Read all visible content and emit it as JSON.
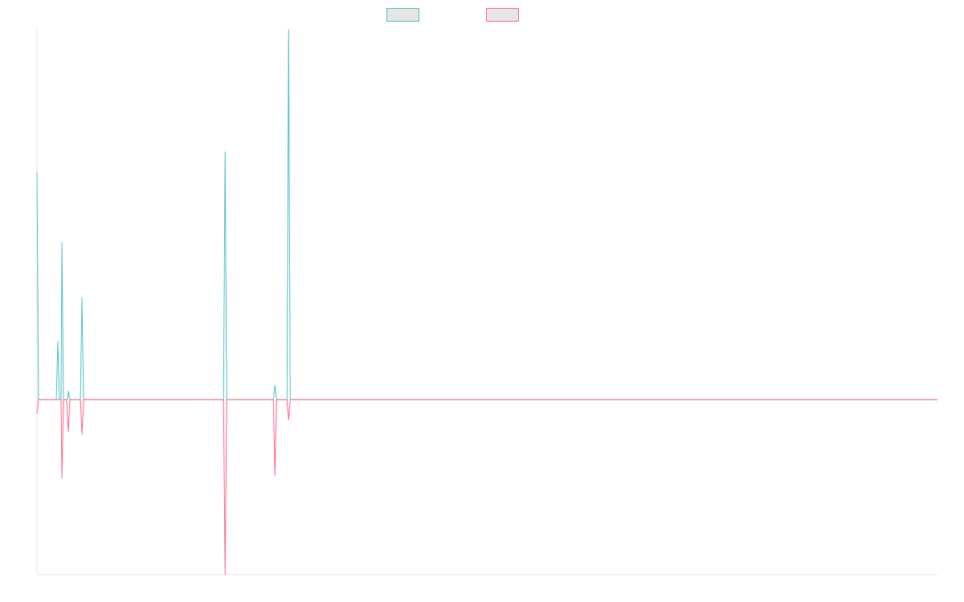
{
  "chart_data": {
    "type": "line",
    "title": "",
    "xlabel": "",
    "ylabel": "",
    "grid": false,
    "legend": "top-center",
    "ylim": [
      -0.6,
      1.27
    ],
    "x": [
      0,
      1,
      2,
      3,
      4,
      5,
      6,
      7,
      8,
      9,
      10,
      11,
      12,
      13,
      14,
      15,
      16,
      17,
      18,
      19,
      20,
      21,
      22,
      23,
      24,
      25,
      26,
      27,
      28,
      29,
      30,
      31,
      32,
      33,
      34,
      35,
      36,
      37,
      38,
      39,
      40,
      41,
      42,
      43,
      44,
      45,
      46,
      47,
      48,
      49,
      50,
      51,
      52,
      53,
      54,
      55,
      56,
      57,
      58,
      59,
      60,
      61,
      62,
      63,
      64,
      65,
      66,
      67,
      68,
      69,
      70,
      71,
      72,
      73,
      74,
      75,
      76,
      77,
      78,
      79,
      80,
      81,
      82,
      83,
      84,
      85,
      86,
      87,
      88,
      89,
      90,
      91,
      92,
      93,
      94,
      95,
      96,
      97,
      98,
      99,
      100,
      101,
      102,
      103,
      104,
      105,
      106,
      107,
      108,
      109,
      110,
      111,
      112,
      113,
      114,
      115,
      116,
      117,
      118,
      119,
      120,
      121,
      122,
      123,
      124,
      125,
      126,
      127,
      128,
      129,
      130,
      131,
      132,
      133,
      134,
      135,
      136,
      137,
      138,
      139,
      140,
      141,
      142,
      143,
      144,
      145,
      146,
      147,
      148,
      149,
      150,
      151,
      152,
      153,
      154,
      155,
      156,
      157,
      158,
      159,
      160,
      161,
      162,
      163,
      164,
      165,
      166,
      167,
      168,
      169,
      170,
      171,
      172,
      173,
      174,
      175,
      176,
      177,
      178,
      179,
      180,
      181,
      182,
      183,
      184,
      185,
      186,
      187,
      188,
      189,
      190,
      191,
      192,
      193,
      194,
      195,
      196,
      197,
      198,
      199,
      200,
      201,
      202,
      203,
      204,
      205,
      206,
      207,
      208,
      209,
      210,
      211,
      212,
      213,
      214,
      215,
      216,
      217,
      218,
      219,
      220,
      221,
      222,
      223,
      224,
      225,
      226,
      227,
      228,
      229,
      230,
      231,
      232,
      233,
      234,
      235,
      236,
      237,
      238,
      239,
      240,
      241,
      242,
      243,
      244,
      245,
      246,
      247,
      248,
      249,
      250,
      251,
      252,
      253,
      254,
      255,
      256,
      257,
      258,
      259,
      260,
      261,
      262,
      263,
      264,
      265,
      266,
      267,
      268,
      269,
      270,
      271,
      272,
      273,
      274,
      275,
      276,
      277,
      278,
      279,
      280,
      281,
      282,
      283,
      284,
      285,
      286,
      287,
      288,
      289,
      290,
      291,
      292,
      293,
      294,
      295,
      296,
      297,
      298,
      299,
      300,
      301,
      302,
      303,
      304,
      305,
      306,
      307,
      308,
      309,
      310,
      311,
      312,
      313,
      314,
      315,
      316,
      317,
      318,
      319,
      320,
      321,
      322,
      323,
      324,
      325,
      326,
      327,
      328,
      329,
      330,
      331,
      332,
      333,
      334,
      335,
      336,
      337,
      338,
      339,
      340,
      341,
      342,
      343,
      344,
      345,
      346,
      347,
      348,
      349,
      350,
      351,
      352,
      353,
      354,
      355,
      356,
      357,
      358,
      359,
      360,
      361,
      362,
      363,
      364,
      365,
      366,
      367,
      368,
      369,
      370,
      371,
      372,
      373,
      374,
      375,
      376,
      377,
      378,
      379,
      380,
      381,
      382,
      383,
      384,
      385,
      386,
      387,
      388,
      389,
      390,
      391,
      392,
      393,
      394,
      395,
      396,
      397,
      398,
      399,
      400,
      401,
      402,
      403,
      404,
      405,
      406,
      407,
      408,
      409,
      410,
      411,
      412,
      413,
      414,
      415,
      416,
      417,
      418,
      419,
      420,
      421,
      422,
      423,
      424,
      425,
      426,
      427,
      428,
      429,
      430,
      431,
      432,
      433,
      434,
      435,
      436,
      437,
      438,
      439,
      440,
      441,
      442,
      443,
      444,
      445,
      446,
      447,
      448,
      449,
      450,
      451,
      452,
      453,
      454,
      455,
      456,
      457,
      458,
      459,
      460,
      461,
      462,
      463,
      464,
      465,
      466,
      467,
      468,
      469,
      470,
      471,
      472,
      473,
      474,
      475,
      476,
      477,
      478,
      479,
      480,
      481,
      482,
      483,
      484,
      485,
      486,
      487,
      488,
      489,
      490,
      491,
      492,
      493,
      494,
      495,
      496,
      497,
      498,
      499,
      500,
      501,
      502,
      503,
      504,
      505,
      506,
      507,
      508,
      509,
      510,
      511,
      512,
      513,
      514,
      515,
      516,
      517,
      518,
      519,
      520,
      521,
      522,
      523,
      524,
      525,
      526,
      527,
      528,
      529,
      530,
      531,
      532,
      533,
      534,
      535,
      536,
      537,
      538,
      539,
      540,
      541,
      542,
      543,
      544,
      545,
      546,
      547,
      548,
      549,
      550,
      551,
      552,
      553,
      554,
      555,
      556,
      557,
      558,
      559,
      560,
      561,
      562,
      563,
      564,
      565,
      566,
      567,
      568,
      569,
      570,
      571,
      572,
      573,
      574,
      575,
      576,
      577,
      578,
      579,
      580,
      581,
      582,
      583,
      584,
      585,
      586,
      587,
      588,
      589,
      590,
      591,
      592,
      593,
      594,
      595,
      596,
      597,
      598,
      599,
      600,
      601,
      602,
      603,
      604,
      605,
      606,
      607,
      608,
      609,
      610,
      611,
      612,
      613,
      614,
      615,
      616,
      617,
      618,
      619,
      620,
      621,
      622,
      623,
      624,
      625,
      626,
      627,
      628,
      629,
      630,
      631,
      632,
      633,
      634,
      635,
      636,
      637,
      638,
      639,
      640,
      641,
      642,
      643,
      644,
      645,
      646,
      647,
      648,
      649,
      650,
      651,
      652,
      653,
      654,
      655,
      656,
      657,
      658,
      659,
      660,
      661,
      662,
      663,
      664,
      665,
      666,
      667,
      668,
      669,
      670,
      671,
      672,
      673,
      674,
      675,
      676,
      677,
      678,
      679,
      680,
      681,
      682,
      683,
      684,
      685,
      686,
      687,
      688,
      689,
      690,
      691,
      692,
      693,
      694,
      695,
      696,
      697,
      698,
      699,
      700,
      701,
      702,
      703,
      704,
      705,
      706,
      707,
      708,
      709,
      710,
      711,
      712,
      713,
      714,
      715,
      716,
      717,
      718,
      719,
      720,
      721,
      722,
      723,
      724,
      725,
      726,
      727,
      728,
      729,
      730,
      731,
      732,
      733,
      734,
      735,
      736,
      737,
      738,
      739,
      740,
      741,
      742,
      743,
      744,
      745,
      746,
      747,
      748,
      749,
      750,
      751,
      752,
      753,
      754,
      755,
      756,
      757,
      758,
      759,
      760,
      761,
      762,
      763,
      764,
      765,
      766,
      767,
      768,
      769,
      770,
      771,
      772,
      773,
      774,
      775,
      776,
      777,
      778,
      779,
      780,
      781,
      782,
      783,
      784,
      785,
      786,
      787,
      788,
      789,
      790,
      791,
      792,
      793,
      794,
      795,
      796,
      797,
      798,
      799,
      800,
      801,
      802,
      803,
      804,
      805,
      806,
      807,
      808,
      809,
      810,
      811,
      812,
      813,
      814,
      815,
      816,
      817,
      818,
      819,
      820,
      821,
      822,
      823,
      824,
      825,
      826,
      827,
      828,
      829,
      830,
      831,
      832,
      833,
      834,
      835,
      836,
      837,
      838,
      839,
      840,
      841,
      842,
      843,
      844,
      845,
      846,
      847,
      848,
      849,
      850,
      851,
      852,
      853,
      854,
      855,
      856,
      857,
      858,
      859,
      860,
      861,
      862,
      863,
      864,
      865,
      866,
      867,
      868,
      869,
      870,
      871,
      872,
      873,
      874,
      875,
      876,
      877,
      878,
      879,
      880,
      881,
      882,
      883,
      884,
      885,
      886,
      887,
      888,
      889,
      890,
      891,
      892,
      893,
      894,
      895,
      896,
      897,
      898,
      899,
      900,
      901,
      902,
      903,
      904,
      905,
      906,
      907,
      908,
      909,
      910,
      911,
      912,
      913,
      914,
      915,
      916,
      917,
      918,
      919,
      920,
      921,
      922,
      923,
      924,
      925,
      926,
      927,
      928,
      929,
      930,
      931,
      932,
      933,
      934,
      935,
      936,
      937,
      938,
      939,
      940,
      941,
      942,
      943,
      944,
      945,
      946,
      947,
      948,
      949,
      950,
      951,
      952,
      953,
      954,
      955,
      956,
      957,
      958,
      959,
      960,
      961,
      962,
      963,
      964,
      965,
      966,
      967,
      968,
      969,
      970,
      971,
      972,
      973,
      974,
      975,
      976,
      977,
      978,
      979,
      980,
      981,
      982,
      983,
      984,
      985,
      986,
      987,
      988,
      989,
      990,
      991,
      992,
      993,
      994,
      995,
      996,
      997,
      998,
      999,
      1000,
      1001,
      1002,
      1003,
      1004,
      1005,
      1006,
      1007,
      1008,
      1009,
      1010,
      1011,
      1012,
      1013,
      1014,
      1015,
      1016,
      1017,
      1018,
      1019,
      1020,
      1021,
      1022,
      1023,
      1024,
      1025,
      1026,
      1027,
      1028,
      1029,
      1030,
      1031,
      1032,
      1033,
      1034,
      1035,
      1036,
      1037,
      1038,
      1039,
      1040,
      1041,
      1042,
      1043,
      1044,
      1045,
      1046,
      1047,
      1048,
      1049,
      1050,
      1051,
      1052,
      1053,
      1054,
      1055,
      1056,
      1057,
      1058,
      1059,
      1060,
      1061,
      1062,
      1063,
      1064,
      1065,
      1066,
      1067,
      1068,
      1069,
      1070,
      1071,
      1072,
      1073,
      1074,
      1075,
      1076,
      1077,
      1078,
      1079,
      1080,
      1081,
      1082,
      1083,
      1084,
      1085,
      1086,
      1087,
      1088,
      1089,
      1090,
      1091,
      1092,
      1093,
      1094,
      1095,
      1096,
      1097,
      1098,
      1099,
      1100,
      1101,
      1102,
      1103,
      1104,
      1105,
      1106,
      1107,
      1108,
      1109,
      1110,
      1111,
      1112,
      1113,
      1114,
      1115,
      1116,
      1117,
      1118,
      1119,
      1120
    ],
    "series": [
      {
        "color": "#4bc0c0",
        "points": [
          [
            0,
            0.78
          ],
          [
            2,
            0.0
          ],
          [
            24,
            0.0
          ],
          [
            26,
            0.2
          ],
          [
            28,
            0.0
          ],
          [
            30,
            0.0
          ],
          [
            31,
            0.54
          ],
          [
            33,
            0.0
          ],
          [
            38,
            0.0
          ],
          [
            39,
            0.03
          ],
          [
            41,
            0.0
          ],
          [
            54,
            0.0
          ],
          [
            56,
            0.35
          ],
          [
            58,
            0.0
          ],
          [
            232,
            0.0
          ],
          [
            234,
            0.85
          ],
          [
            236,
            0.0
          ],
          [
            294,
            0.0
          ],
          [
            296,
            0.05
          ],
          [
            298,
            0.0
          ],
          [
            311,
            0.0
          ],
          [
            313,
            1.27
          ],
          [
            315,
            0.0
          ],
          [
            1120,
            0.0
          ]
        ]
      },
      {
        "color": "#ff6384",
        "points": [
          [
            0,
            -0.05
          ],
          [
            2,
            0.0
          ],
          [
            30,
            0.0
          ],
          [
            31,
            -0.27
          ],
          [
            33,
            0.0
          ],
          [
            37,
            0.0
          ],
          [
            39,
            -0.11
          ],
          [
            41,
            0.0
          ],
          [
            54,
            0.0
          ],
          [
            56,
            -0.12
          ],
          [
            58,
            0.0
          ],
          [
            232,
            0.0
          ],
          [
            234,
            -0.6
          ],
          [
            236,
            0.0
          ],
          [
            294,
            0.0
          ],
          [
            296,
            -0.26
          ],
          [
            298,
            0.0
          ],
          [
            311,
            0.0
          ],
          [
            313,
            -0.07
          ],
          [
            315,
            0.0
          ],
          [
            1120,
            0.0
          ]
        ]
      }
    ]
  },
  "legend": {
    "items": [
      {
        "label": "",
        "stroke": "#4bc0c0",
        "fill": "#e6e6e6"
      },
      {
        "label": "",
        "stroke": "#ff6384",
        "fill": "#e6e6e6"
      }
    ]
  }
}
